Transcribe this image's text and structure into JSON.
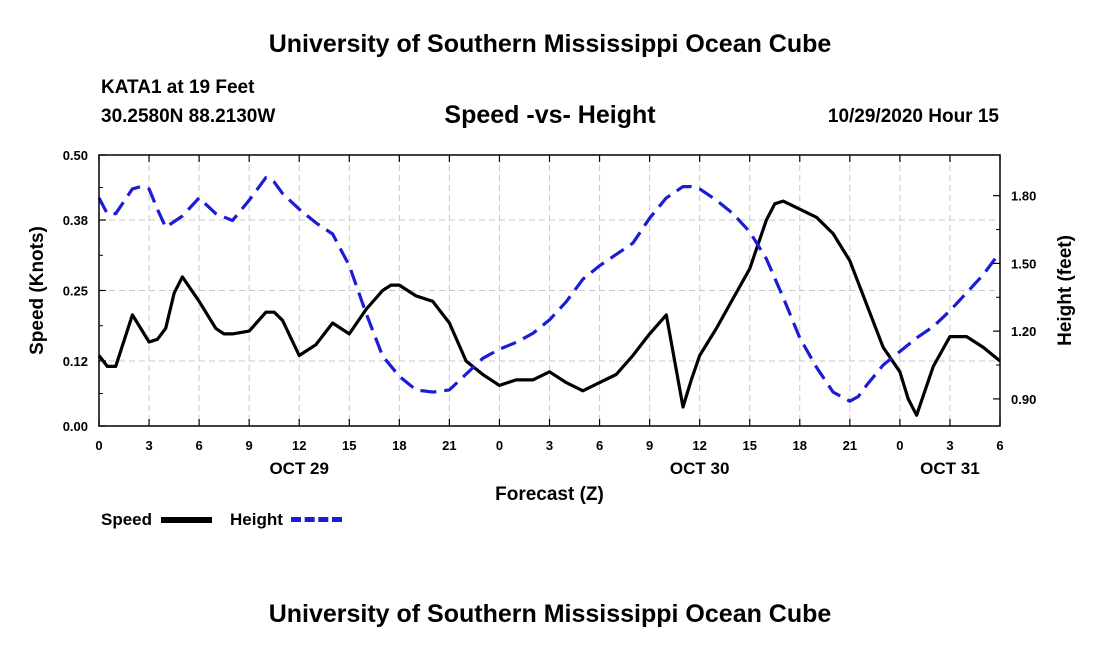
{
  "header": {
    "title_top": "University of Southern Mississippi Ocean Cube",
    "station": "KATA1 at 19 Feet",
    "coords": "30.2580N 88.2130W",
    "timestamp": "10/29/2020 Hour 15",
    "title_bottom": "University of Southern Mississippi Ocean Cube"
  },
  "legend": {
    "speed_label": "Speed",
    "height_label": "Height"
  },
  "colors": {
    "speed": "#000000",
    "height": "#1c1cd6",
    "grid": "#c8c8c8"
  },
  "chart_data": {
    "type": "line",
    "title": "Speed -vs- Height",
    "xlabel": "Forecast (Z)",
    "ylabel": "Speed (Knots)",
    "y2label": "Height (feet)",
    "xlim": [
      0,
      54
    ],
    "ylim": [
      0,
      0.5
    ],
    "y2lim": [
      0.78,
      1.98
    ],
    "x_ticks": [
      0,
      3,
      6,
      9,
      12,
      15,
      18,
      21,
      24,
      27,
      30,
      33,
      36,
      39,
      42,
      45,
      48,
      51,
      54
    ],
    "x_tick_labels": [
      "0",
      "3",
      "6",
      "9",
      "12",
      "15",
      "18",
      "21",
      "0",
      "3",
      "6",
      "9",
      "12",
      "15",
      "18",
      "21",
      "0",
      "3",
      "6"
    ],
    "y_ticks": [
      0,
      0.12,
      0.25,
      0.38,
      0.5
    ],
    "y_tick_labels": [
      "0.00",
      "0.12",
      "0.25",
      "0.38",
      "0.50"
    ],
    "y2_ticks": [
      0.9,
      1.2,
      1.5,
      1.8
    ],
    "y2_tick_labels": [
      "0.90",
      "1.20",
      "1.50",
      "1.80"
    ],
    "date_labels": [
      {
        "label": "OCT 29",
        "x": 12
      },
      {
        "label": "OCT 30",
        "x": 36
      },
      {
        "label": "OCT 31",
        "x": 51
      }
    ],
    "series": [
      {
        "name": "Speed",
        "axis": "left",
        "style": "solid",
        "x": [
          0,
          0.5,
          1,
          2,
          3,
          3.5,
          4,
          4.5,
          5,
          6,
          7,
          7.5,
          8,
          9,
          10,
          10.5,
          11,
          12,
          13,
          14,
          15,
          16,
          17,
          17.5,
          18,
          19,
          20,
          21,
          22,
          23,
          24,
          25,
          26,
          27,
          28,
          29,
          30,
          31,
          32,
          33,
          34,
          35,
          35.5,
          36,
          37,
          38,
          39,
          40,
          40.5,
          41,
          42,
          43,
          44,
          45,
          46,
          47,
          48,
          48.5,
          49,
          50,
          51,
          52,
          53,
          54
        ],
        "values": [
          0.13,
          0.11,
          0.11,
          0.205,
          0.155,
          0.16,
          0.18,
          0.245,
          0.275,
          0.23,
          0.18,
          0.17,
          0.17,
          0.175,
          0.21,
          0.21,
          0.195,
          0.13,
          0.15,
          0.19,
          0.17,
          0.215,
          0.25,
          0.26,
          0.26,
          0.24,
          0.23,
          0.19,
          0.12,
          0.095,
          0.075,
          0.085,
          0.085,
          0.1,
          0.08,
          0.065,
          0.08,
          0.095,
          0.13,
          0.17,
          0.205,
          0.035,
          0.085,
          0.13,
          0.18,
          0.235,
          0.29,
          0.38,
          0.41,
          0.415,
          0.4,
          0.385,
          0.355,
          0.305,
          0.225,
          0.145,
          0.1,
          0.05,
          0.02,
          0.11,
          0.165,
          0.165,
          0.145,
          0.12
        ]
      },
      {
        "name": "Height",
        "axis": "right",
        "style": "dashed",
        "x": [
          0,
          0.5,
          1,
          2,
          2.5,
          3,
          3.5,
          4,
          5,
          6,
          7,
          8,
          9,
          10,
          10.5,
          11,
          12,
          13,
          14,
          15,
          16,
          17,
          18,
          19,
          20,
          21,
          22,
          23,
          24,
          25,
          26,
          27,
          28,
          29,
          30,
          31,
          32,
          33,
          34,
          35,
          35.5,
          36,
          37,
          38,
          39,
          40,
          41,
          42,
          43,
          44,
          45,
          45.5,
          46,
          47,
          48,
          49,
          50,
          51,
          52,
          53,
          54
        ],
        "values": [
          1.79,
          1.72,
          1.72,
          1.83,
          1.84,
          1.83,
          1.74,
          1.66,
          1.71,
          1.79,
          1.72,
          1.69,
          1.78,
          1.88,
          1.86,
          1.81,
          1.74,
          1.68,
          1.63,
          1.49,
          1.28,
          1.09,
          1.0,
          0.94,
          0.93,
          0.94,
          1.01,
          1.08,
          1.12,
          1.15,
          1.19,
          1.25,
          1.33,
          1.43,
          1.49,
          1.54,
          1.59,
          1.7,
          1.79,
          1.84,
          1.84,
          1.83,
          1.78,
          1.72,
          1.64,
          1.52,
          1.35,
          1.17,
          1.04,
          0.93,
          0.89,
          0.91,
          0.96,
          1.05,
          1.11,
          1.17,
          1.22,
          1.29,
          1.37,
          1.45,
          1.55
        ]
      }
    ]
  }
}
